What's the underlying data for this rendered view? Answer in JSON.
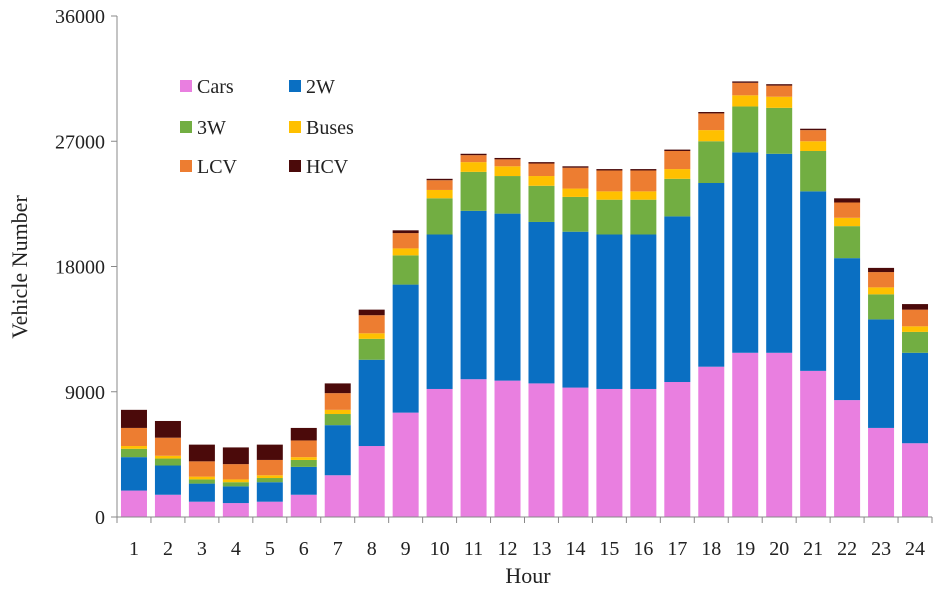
{
  "chart_data": {
    "type": "bar",
    "stacked": true,
    "xlabel": "Hour",
    "ylabel": "Vehicle Number",
    "ylim": [
      0,
      36000
    ],
    "yticks": [
      0,
      9000,
      18000,
      27000,
      36000
    ],
    "grid": false,
    "legend_position": "top-left",
    "categories": [
      "1",
      "2",
      "3",
      "4",
      "5",
      "6",
      "7",
      "8",
      "9",
      "10",
      "11",
      "12",
      "13",
      "14",
      "15",
      "16",
      "17",
      "18",
      "19",
      "20",
      "21",
      "22",
      "23",
      "24"
    ],
    "series": [
      {
        "name": "Cars",
        "color": "#E97FE0",
        "values": [
          1900,
          1600,
          1100,
          1000,
          1100,
          1600,
          3000,
          5100,
          7500,
          9200,
          9900,
          9800,
          9600,
          9300,
          9200,
          9200,
          9700,
          10800,
          11800,
          11800,
          10500,
          8400,
          6400,
          5300
        ]
      },
      {
        "name": "2W",
        "color": "#0A6FC2",
        "values": [
          2400,
          2100,
          1300,
          1200,
          1400,
          2000,
          3600,
          6200,
          9200,
          11100,
          12100,
          12000,
          11600,
          11200,
          11100,
          11100,
          11900,
          13200,
          14400,
          14300,
          12900,
          10200,
          7800,
          6500
        ]
      },
      {
        "name": "3W",
        "color": "#72AE42",
        "values": [
          600,
          500,
          300,
          300,
          300,
          500,
          800,
          1500,
          2100,
          2600,
          2800,
          2700,
          2600,
          2500,
          2500,
          2500,
          2700,
          3000,
          3300,
          3300,
          2900,
          2300,
          1800,
          1500
        ]
      },
      {
        "name": "Buses",
        "color": "#FFC000",
        "values": [
          200,
          200,
          200,
          200,
          200,
          200,
          300,
          400,
          500,
          600,
          700,
          700,
          700,
          600,
          600,
          600,
          700,
          800,
          800,
          800,
          700,
          600,
          500,
          400
        ]
      },
      {
        "name": "LCV",
        "color": "#ED7D31",
        "values": [
          1300,
          1300,
          1100,
          1100,
          1100,
          1200,
          1200,
          1300,
          1100,
          700,
          500,
          500,
          900,
          1500,
          1500,
          1500,
          1300,
          1200,
          900,
          800,
          800,
          1100,
          1100,
          1200
        ]
      },
      {
        "name": "HCV",
        "color": "#4B0A0A",
        "values": [
          1300,
          1200,
          1200,
          1200,
          1100,
          900,
          700,
          400,
          200,
          100,
          100,
          100,
          100,
          100,
          100,
          100,
          100,
          100,
          100,
          100,
          100,
          300,
          300,
          400
        ]
      }
    ]
  }
}
